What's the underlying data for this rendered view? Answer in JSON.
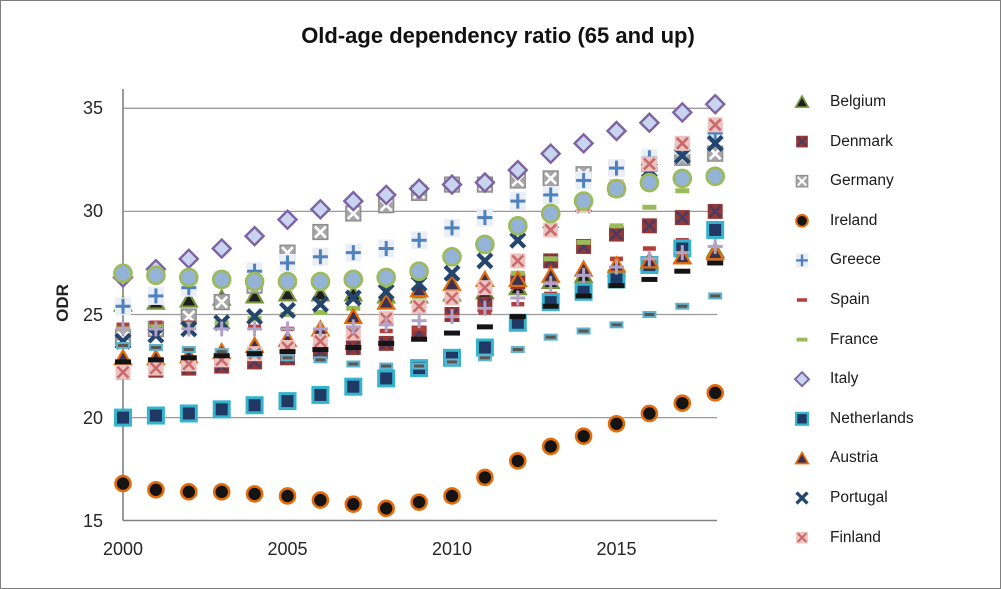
{
  "title": "Old-age dependency ratio (65 and up)",
  "y_axis": {
    "label": "ODR",
    "ticks": [
      35,
      30,
      25,
      20,
      15
    ],
    "min": 15,
    "max": 35
  },
  "x_axis": {
    "ticks": [
      2000,
      2005,
      2010,
      2015
    ]
  },
  "colors": {
    "gridline": "#9a9a9a",
    "axis_line": "#808080",
    "tick_text": "#262626",
    "title_text": "#111111",
    "frame_border": "#7f7f7f",
    "background": "#ffffff"
  },
  "chart_data": {
    "type": "scatter",
    "title": "Old-age dependency ratio (65 and up)",
    "xlabel": "",
    "ylabel": "ODR",
    "x": [
      2000,
      2001,
      2002,
      2003,
      2004,
      2005,
      2006,
      2007,
      2008,
      2009,
      2010,
      2011,
      2012,
      2013,
      2014,
      2015,
      2016,
      2017,
      2018
    ],
    "xlim": [
      1999.5,
      2018.5
    ],
    "ylim": [
      15,
      35.9
    ],
    "grid": "horizontal-only",
    "legend_position": "right",
    "note": "Markers only (no lines). Four additional unlabeled marker series are plotted whose legend entries are not visible in the image; they are listed last with empty names.",
    "series": [
      {
        "name": "Belgium",
        "legend_visible": true,
        "marker": {
          "shape": "triangle",
          "fill": "#1f1f1f",
          "stroke": "#77933c"
        },
        "values": [
          25.5,
          25.6,
          25.7,
          25.8,
          25.9,
          26.0,
          26.0,
          26.0,
          25.9,
          25.9,
          26.0,
          26.1,
          26.3,
          26.6,
          26.9,
          27.2,
          27.5,
          27.8,
          28.1
        ]
      },
      {
        "name": "Denmark",
        "legend_visible": true,
        "marker": {
          "shape": "xsquare",
          "fill": "#953735",
          "cross": "#4a3b63"
        },
        "values": [
          22.2,
          22.3,
          22.4,
          22.5,
          22.7,
          22.9,
          23.2,
          23.4,
          23.6,
          24.1,
          25.0,
          25.5,
          26.6,
          27.6,
          28.3,
          28.9,
          29.3,
          29.7,
          30.0
        ]
      },
      {
        "name": "Germany",
        "legend_visible": true,
        "marker": {
          "shape": "xsquare",
          "fill": "#a6a6a6",
          "cross": "#ffffff",
          "border": "#8c8c8c"
        },
        "values": [
          23.9,
          24.3,
          24.9,
          25.6,
          26.4,
          28.0,
          29.0,
          29.9,
          30.3,
          30.9,
          31.3,
          31.3,
          31.5,
          31.6,
          31.8,
          32.1,
          32.3,
          32.6,
          32.8
        ]
      },
      {
        "name": "Ireland",
        "legend_visible": true,
        "marker": {
          "shape": "circle",
          "fill": "#141414",
          "stroke": "#e36c0a",
          "r": 7.5
        },
        "values": [
          16.8,
          16.5,
          16.4,
          16.4,
          16.3,
          16.2,
          16.0,
          15.8,
          15.6,
          15.9,
          16.2,
          17.1,
          17.9,
          18.6,
          19.1,
          19.7,
          20.2,
          20.7,
          21.2
        ]
      },
      {
        "name": "Greece",
        "legend_visible": true,
        "marker": {
          "shape": "plus",
          "color": "#4f81bd",
          "bg": "#e9eef7"
        },
        "values": [
          25.4,
          25.9,
          26.3,
          26.7,
          27.1,
          27.5,
          27.8,
          28.0,
          28.2,
          28.6,
          29.2,
          29.7,
          30.5,
          30.8,
          31.5,
          32.1,
          32.6,
          33.2,
          33.8
        ]
      },
      {
        "name": "Spain",
        "legend_visible": true,
        "marker": {
          "shape": "dash",
          "fill": "#b23f3c",
          "w": 13,
          "h": 4.5
        },
        "values": [
          24.5,
          24.6,
          24.6,
          24.5,
          24.4,
          24.3,
          24.2,
          24.2,
          24.2,
          24.3,
          24.9,
          25.1,
          25.5,
          26.0,
          27.0,
          27.7,
          28.2,
          28.6,
          29.0
        ]
      },
      {
        "name": "France",
        "legend_visible": true,
        "marker": {
          "shape": "dash",
          "fill": "#9bbb59",
          "w": 14,
          "h": 5
        },
        "values": [
          24.3,
          24.4,
          24.5,
          24.6,
          24.8,
          25.0,
          25.1,
          25.3,
          25.5,
          25.7,
          26.0,
          26.4,
          27.0,
          27.7,
          28.5,
          29.3,
          30.2,
          31.0,
          31.5
        ]
      },
      {
        "name": "Italy",
        "legend_visible": true,
        "marker": {
          "shape": "diamond",
          "fill": "#c9d4f0",
          "stroke": "#7d63a1"
        },
        "values": [
          26.8,
          27.2,
          27.7,
          28.2,
          28.8,
          29.6,
          30.1,
          30.5,
          30.8,
          31.1,
          31.3,
          31.4,
          32.0,
          32.8,
          33.3,
          33.9,
          34.3,
          34.8,
          35.2
        ]
      },
      {
        "name": "Netherlands",
        "legend_visible": true,
        "marker": {
          "shape": "square",
          "fill": "#1f3864",
          "stroke": "#35b4cd"
        },
        "values": [
          20.0,
          20.1,
          20.2,
          20.4,
          20.6,
          20.8,
          21.1,
          21.5,
          21.9,
          22.4,
          22.9,
          23.4,
          24.6,
          25.6,
          26.1,
          26.7,
          27.4,
          28.2,
          29.1
        ]
      },
      {
        "name": "Austria",
        "legend_visible": true,
        "marker": {
          "shape": "triangle",
          "fill": "#3a3153",
          "stroke": "#e36c0a"
        },
        "values": [
          22.9,
          22.9,
          23.0,
          23.2,
          23.5,
          23.8,
          24.3,
          24.9,
          25.6,
          26.2,
          26.5,
          26.7,
          26.7,
          26.9,
          27.2,
          27.4,
          27.6,
          27.8,
          28.0
        ]
      },
      {
        "name": "Portugal",
        "legend_visible": true,
        "marker": {
          "shape": "x",
          "color": "#24456e"
        },
        "values": [
          23.7,
          24.0,
          24.3,
          24.6,
          24.9,
          25.2,
          25.5,
          25.8,
          26.1,
          26.5,
          27.0,
          27.6,
          28.6,
          29.5,
          30.3,
          31.1,
          32.0,
          32.7,
          33.3
        ]
      },
      {
        "name": "Finland",
        "legend_visible": true,
        "marker": {
          "shape": "xsquare",
          "fill": "#ecc3c1",
          "cross": "#c96a6a"
        },
        "values": [
          22.2,
          22.4,
          22.6,
          22.8,
          23.1,
          23.4,
          23.7,
          24.1,
          24.8,
          25.4,
          25.8,
          26.3,
          27.6,
          29.1,
          30.3,
          31.2,
          32.3,
          33.3,
          34.2
        ]
      },
      {
        "name": "",
        "legend_visible": false,
        "marker_note": "light blue circle with olive-green edge (legend entry not visible)",
        "marker": {
          "shape": "circle",
          "fill": "#95b3d7",
          "stroke": "#9bbb59",
          "r": 8.5
        },
        "values": [
          27.0,
          26.9,
          26.8,
          26.7,
          26.6,
          26.6,
          26.6,
          26.7,
          26.8,
          27.1,
          27.8,
          28.4,
          29.3,
          29.9,
          30.5,
          31.1,
          31.4,
          31.6,
          31.7
        ]
      },
      {
        "name": "",
        "legend_visible": false,
        "marker_note": "lavender plus sign (legend entry not visible)",
        "marker": {
          "shape": "plus",
          "color": "#b3a2c7"
        },
        "values": [
          24.3,
          24.3,
          24.3,
          24.3,
          24.3,
          24.3,
          24.3,
          24.4,
          24.5,
          24.7,
          24.9,
          25.3,
          25.8,
          26.5,
          26.9,
          27.3,
          27.7,
          28.0,
          28.3
        ]
      },
      {
        "name": "",
        "legend_visible": false,
        "marker_note": "teal-bordered dark dash (legend entry not visible)",
        "marker": {
          "shape": "dash",
          "fill": "#5d564f",
          "stroke": "#5fb3cf",
          "w": 12,
          "h": 5
        },
        "values": [
          23.5,
          23.4,
          23.3,
          23.2,
          23.1,
          22.9,
          22.8,
          22.6,
          22.5,
          22.5,
          22.7,
          22.9,
          23.3,
          23.9,
          24.2,
          24.5,
          25.0,
          25.4,
          25.9
        ]
      },
      {
        "name": "",
        "legend_visible": false,
        "marker_note": "black dash (legend entry not visible)",
        "marker": {
          "shape": "dash",
          "fill": "#141414",
          "w": 16,
          "h": 5
        },
        "values": [
          22.7,
          22.8,
          22.9,
          23.0,
          23.1,
          23.2,
          23.3,
          23.4,
          23.6,
          23.8,
          24.1,
          24.4,
          24.9,
          25.4,
          25.9,
          26.4,
          26.7,
          27.1,
          27.5
        ]
      }
    ]
  },
  "legend": {
    "labels": [
      "Belgium",
      "Denmark",
      "Germany",
      "Ireland",
      "Greece",
      "Spain",
      "France",
      "Italy",
      "Netherlands",
      "Austria",
      "Portugal",
      "Finland"
    ]
  }
}
